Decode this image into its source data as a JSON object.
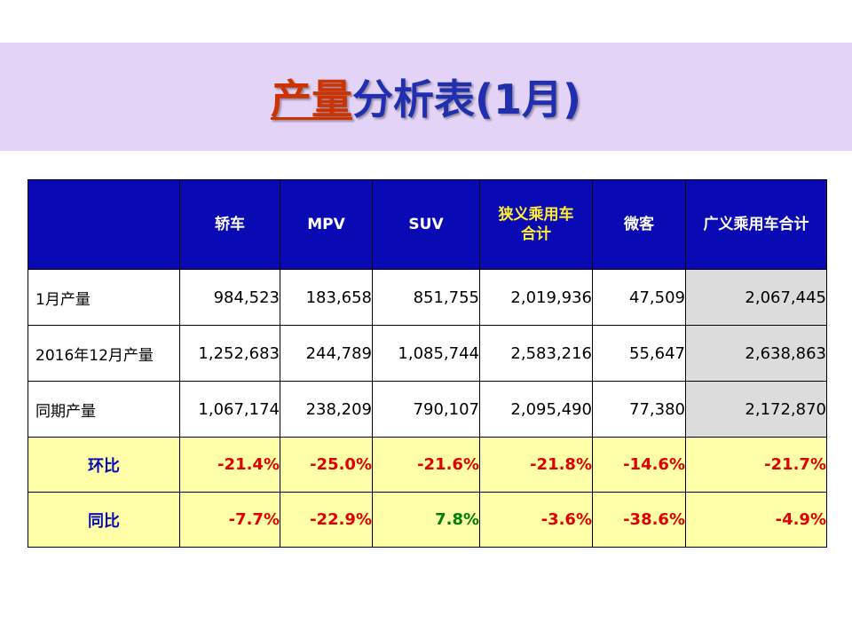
{
  "title": {
    "highlight": "产量",
    "rest": "分析表(1月)"
  },
  "colors": {
    "header_bg": "#0a0ab4",
    "ratio_bg": "#ffffa8",
    "negative": "#e00000",
    "positive": "#008000",
    "title_band": "#e3d3f7"
  },
  "table": {
    "headers": [
      "",
      "轿车",
      "MPV",
      "SUV",
      "狭义乘用车合计",
      "微客",
      "广义乘用车合计"
    ],
    "rows": [
      {
        "label": "1月产量",
        "values": [
          "984,523",
          "183,658",
          "851,755",
          "2,019,936",
          "47,509",
          "2,067,445"
        ]
      },
      {
        "label": "2016年12月产量",
        "values": [
          "1,252,683",
          "244,789",
          "1,085,744",
          "2,583,216",
          "55,647",
          "2,638,863"
        ]
      },
      {
        "label": "同期产量",
        "values": [
          "1,067,174",
          "238,209",
          "790,107",
          "2,095,490",
          "77,380",
          "2,172,870"
        ]
      }
    ],
    "ratios": [
      {
        "label": "环比",
        "values": [
          "-21.4%",
          "-25.0%",
          "-21.6%",
          "-21.8%",
          "-14.6%",
          "-21.7%"
        ]
      },
      {
        "label": "同比",
        "values": [
          "-7.7%",
          "-22.9%",
          "7.8%",
          "-3.6%",
          "-38.6%",
          "-4.9%"
        ]
      }
    ]
  }
}
